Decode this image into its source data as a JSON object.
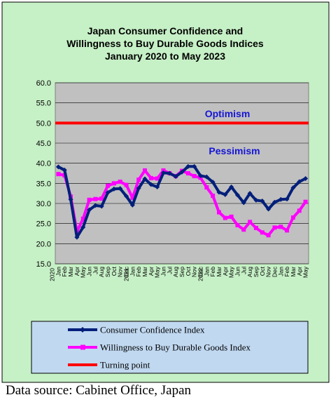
{
  "chart_data": {
    "type": "line",
    "title": [
      "Japan Consumer Confidence and",
      "Willingness to Buy Durable Goods Indices",
      "January 2020 to May 2023"
    ],
    "ylim": [
      15,
      60
    ],
    "yticks": [
      "15.0",
      "20.0",
      "25.0",
      "30.0",
      "35.0",
      "40.0",
      "45.0",
      "50.0",
      "55.0",
      "60.0"
    ],
    "x": [
      "Jan",
      "Feb",
      "Mar",
      "Apr",
      "May",
      "Jun",
      "Jul",
      "Aug",
      "Sep",
      "Oct",
      "Nov",
      "Dec",
      "Jan",
      "Feb",
      "Mar",
      "Apr",
      "May",
      "Jun",
      "Jul",
      "Aug",
      "Sep",
      "Oct",
      "Nov",
      "Dec",
      "Jan",
      "Feb",
      "Mar",
      "Apr",
      "May",
      "Jun",
      "Jul",
      "Aug",
      "Sep",
      "Oct",
      "Nov",
      "Dec",
      "Jan",
      "Feb",
      "Mar",
      "Apr",
      "May"
    ],
    "year_labels": [
      {
        "index": 0,
        "label": "2020"
      },
      {
        "index": 12,
        "label": "2021"
      },
      {
        "index": 24,
        "label": "2022"
      }
    ],
    "grid": true,
    "legend_position": "bottom",
    "series": [
      {
        "name": "Consumer Confidence Index",
        "color": "#001f7a",
        "marker": "diamond",
        "values": [
          39.1,
          38.3,
          31.0,
          21.6,
          24.1,
          28.4,
          29.5,
          29.3,
          32.7,
          33.6,
          33.7,
          31.8,
          29.6,
          33.8,
          36.1,
          34.7,
          34.1,
          37.6,
          37.5,
          36.7,
          37.8,
          39.2,
          39.2,
          36.9,
          36.6,
          35.3,
          32.8,
          32.2,
          34.1,
          32.1,
          30.2,
          32.5,
          30.8,
          30.6,
          28.6,
          30.3,
          31.0,
          31.1,
          33.9,
          35.4,
          36.2
        ]
      },
      {
        "name": "Willingness to Buy Durable Goods Index",
        "color": "#ff00ff",
        "marker": "square",
        "values": [
          37.3,
          37.0,
          31.7,
          23.0,
          26.2,
          30.9,
          31.1,
          31.2,
          34.4,
          35.0,
          35.4,
          34.6,
          31.4,
          35.9,
          38.2,
          36.3,
          36.2,
          38.2,
          37.5,
          36.8,
          38.1,
          37.5,
          36.8,
          36.4,
          34.0,
          31.9,
          27.8,
          26.4,
          26.7,
          24.6,
          23.5,
          25.4,
          23.9,
          22.8,
          22.1,
          24.0,
          24.2,
          23.3,
          26.5,
          28.2,
          30.4
        ]
      },
      {
        "name": "Turning point",
        "color": "#ff0000",
        "marker": "none",
        "values": [
          50,
          50,
          50,
          50,
          50,
          50,
          50,
          50,
          50,
          50,
          50,
          50,
          50,
          50,
          50,
          50,
          50,
          50,
          50,
          50,
          50,
          50,
          50,
          50,
          50,
          50,
          50,
          50,
          50,
          50,
          50,
          50,
          50,
          50,
          50,
          50,
          50,
          50,
          50,
          50,
          50
        ]
      }
    ],
    "annotations": [
      "Optimism",
      "Pessimism"
    ]
  },
  "source": "Data source: Cabinet Office, Japan"
}
